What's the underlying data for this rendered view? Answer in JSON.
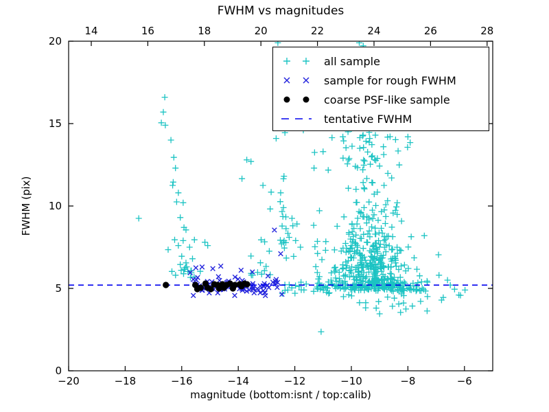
{
  "figure": {
    "title": "FWHM vs magnitudes",
    "xlabel": "magnitude (bottom:isnt / top:calib)",
    "ylabel": "FWHM (pix)",
    "background": "#ffffff"
  },
  "chart_data": {
    "type": "scatter",
    "title": "FWHM vs magnitudes",
    "xlabel": "magnitude (bottom:isnt / top:calib)",
    "ylabel": "FWHM (pix)",
    "xlim": [
      -20,
      -5
    ],
    "ylim": [
      0,
      20
    ],
    "grid": false,
    "legend_position": "upper right",
    "x_ticks_bottom": [
      -20,
      -18,
      -16,
      -14,
      -12,
      -10,
      -8,
      -6
    ],
    "x_ticks_top": [
      14,
      16,
      18,
      20,
      22,
      24,
      26,
      28
    ],
    "top_axis_offset": 33.2,
    "y_ticks": [
      0,
      5,
      10,
      15,
      20
    ],
    "tentative_fwhm_y": 5.2,
    "series": [
      {
        "name": "all sample",
        "marker": "plus",
        "color": "#1cc3c3",
        "points": [
          [
            -16.6,
            16.6
          ],
          [
            -16.65,
            15.7
          ],
          [
            -16.72,
            15.05
          ],
          [
            -16.58,
            14.9
          ],
          [
            -16.38,
            14.0
          ],
          [
            -16.28,
            12.95
          ],
          [
            -16.22,
            12.3
          ],
          [
            -16.3,
            11.45
          ],
          [
            -16.32,
            11.25
          ],
          [
            -16.12,
            10.8
          ],
          [
            -16.18,
            10.25
          ],
          [
            -15.95,
            10.2
          ],
          [
            -16.05,
            9.3
          ],
          [
            -17.52,
            9.25
          ],
          [
            -15.92,
            8.7
          ],
          [
            -15.85,
            8.55
          ],
          [
            -16.25,
            7.95
          ],
          [
            -15.95,
            7.9
          ],
          [
            -15.55,
            7.95
          ],
          [
            -15.18,
            7.8
          ],
          [
            -16.12,
            7.6
          ],
          [
            -15.72,
            7.5
          ],
          [
            -15.08,
            7.6
          ],
          [
            -16.48,
            7.35
          ],
          [
            -16.0,
            6.95
          ],
          [
            -15.62,
            6.8
          ],
          [
            -16.05,
            6.45
          ],
          [
            -15.85,
            6.55
          ],
          [
            -16.02,
            6.1
          ],
          [
            -15.88,
            6.25
          ],
          [
            -10.3,
            14.2
          ],
          [
            -9.6,
            14.25
          ],
          [
            -9.35,
            14.1
          ],
          [
            -9.15,
            14.3
          ],
          [
            -9.7,
            13.5
          ],
          [
            -10.1,
            12.8
          ],
          [
            -8.0,
            14.2
          ],
          [
            -7.92,
            13.85
          ],
          [
            -11.7,
            14.6
          ],
          [
            -10.12,
            14.5
          ],
          [
            -12.6,
            19.9
          ],
          [
            -9.72,
            19.9
          ],
          [
            -9.58,
            19.72
          ],
          [
            -8.9,
            14.8
          ],
          [
            -7.42,
            8.2
          ],
          [
            -13.7,
            12.8
          ],
          [
            -13.55,
            12.7
          ],
          [
            -12.66,
            14.1
          ],
          [
            -12.35,
            14.45
          ],
          [
            -12.4,
            11.65
          ],
          [
            -12.5,
            10.8
          ],
          [
            -11.3,
            13.25
          ],
          [
            -11.0,
            13.3
          ],
          [
            -11.32,
            12.3
          ],
          [
            -12.4,
            9.9
          ],
          [
            -12.1,
            9.25
          ],
          [
            -12.2,
            8.1
          ],
          [
            -11.97,
            7.9
          ],
          [
            -11.8,
            7.5
          ],
          [
            -11.07,
            2.37
          ],
          [
            -9.0,
            3.46
          ],
          [
            -8.26,
            3.54
          ],
          [
            -8.07,
            3.75
          ],
          [
            -7.32,
            3.63
          ],
          [
            -6.81,
            4.29
          ],
          [
            -6.14,
            4.58
          ],
          [
            -6.9,
            5.8
          ],
          [
            -6.6,
            5.5
          ],
          [
            -6.5,
            5.2
          ],
          [
            -6.35,
            4.95
          ],
          [
            -6.2,
            4.6
          ],
          [
            -6.75,
            4.45
          ],
          [
            -5.98,
            4.9
          ]
        ],
        "clusters": [
          {
            "type": "uniform",
            "n": 12,
            "x": [
              -16.45,
              -15.15
            ],
            "y": [
              5.55,
              6.45
            ],
            "seed": 11
          },
          {
            "type": "uniform",
            "n": 26,
            "x": [
              -13.95,
              -11.25
            ],
            "y": [
              5.8,
              12.5
            ],
            "ypow": 1.8,
            "seed": 12
          },
          {
            "type": "gauss",
            "n": 10,
            "cx": -12.35,
            "cy": 8.2,
            "sx": 0.12,
            "sy": 1.6,
            "clampY": [
              5.8,
              10.3
            ],
            "seed": 13
          },
          {
            "type": "band",
            "n": 150,
            "x": [
              -12.45,
              -7.3
            ],
            "xpow": 0.8,
            "yMean": 5.12,
            "ySd": 0.22,
            "clampY": [
              4.5,
              5.9
            ],
            "seed": 14
          },
          {
            "type": "cloud",
            "n": 400,
            "cx": -9.25,
            "sx": 0.62,
            "yBase": 4.85,
            "yMax": 15.0,
            "clampX": [
              -11.4,
              -6.9
            ],
            "seed": 15
          },
          {
            "type": "uniform",
            "n": 13,
            "x": [
              -10.6,
              -7.35
            ],
            "y": [
              3.8,
              4.6
            ],
            "seed": 16
          },
          {
            "type": "uniform",
            "n": 18,
            "x": [
              -11.5,
              -10.0
            ],
            "y": [
              5.5,
              10.5
            ],
            "ypow": 1.5,
            "seed": 18
          }
        ]
      },
      {
        "name": "sample for rough FWHM",
        "marker": "cross",
        "color": "#2626dd",
        "points": [
          [
            -12.72,
            8.54
          ],
          [
            -12.5,
            7.1
          ],
          [
            -15.7,
            5.95
          ],
          [
            -15.5,
            6.25
          ],
          [
            -15.28,
            6.3
          ],
          [
            -14.9,
            6.2
          ],
          [
            -14.62,
            6.35
          ],
          [
            -13.9,
            6.1
          ],
          [
            -13.5,
            6.0
          ],
          [
            -12.95,
            5.75
          ]
        ],
        "clusters": [
          {
            "type": "band",
            "n": 85,
            "x": [
              -15.65,
              -12.45
            ],
            "yMean": 5.15,
            "ySd": 0.3,
            "clampY": [
              4.55,
              6.35
            ],
            "seed": 17
          }
        ]
      },
      {
        "name": "coarse PSF-like sample",
        "marker": "dot",
        "color": "#000000",
        "points": [
          [
            -16.56,
            5.21
          ],
          [
            -15.52,
            5.21
          ],
          [
            -15.45,
            4.96
          ],
          [
            -15.33,
            5.04
          ],
          [
            -15.16,
            5.29
          ],
          [
            -15.09,
            5.04
          ],
          [
            -14.97,
            4.96
          ],
          [
            -14.85,
            5.25
          ],
          [
            -14.73,
            5.21
          ],
          [
            -14.68,
            5.0
          ],
          [
            -14.56,
            5.25
          ],
          [
            -14.51,
            5.04
          ],
          [
            -14.41,
            5.21
          ],
          [
            -14.29,
            5.29
          ],
          [
            -14.19,
            5.0
          ],
          [
            -14.12,
            5.21
          ],
          [
            -13.95,
            5.25
          ],
          [
            -13.88,
            5.13
          ],
          [
            -13.78,
            5.29
          ],
          [
            -13.69,
            5.25
          ]
        ],
        "clusters": []
      },
      {
        "name": "tentative FWHM",
        "marker": "dashed-line",
        "linestyle": "dashed",
        "color": "#0000ee",
        "y": 5.2
      }
    ]
  }
}
